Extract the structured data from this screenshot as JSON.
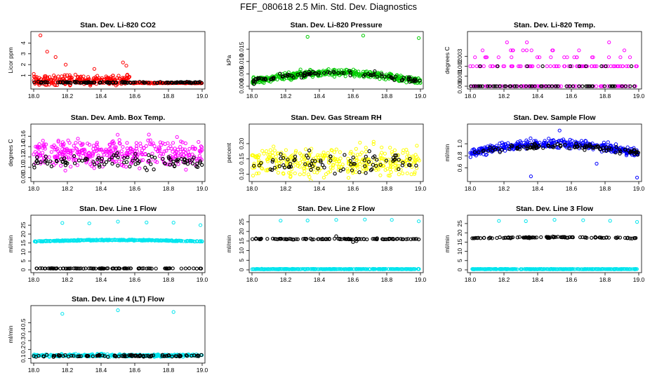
{
  "figure_title": "FEF_080618  2.5 Min. Std. Dev. Diagnostics",
  "colors": {
    "red": "#ff0000",
    "green": "#00cc00",
    "magenta": "#ff00ff",
    "yellow": "#ffff00",
    "blue": "#0000ff",
    "cyan": "#00e5ee",
    "black": "#000000"
  },
  "chart_data": [
    {
      "type": "scatter",
      "title": "Stan. Dev. Li-820 CO2",
      "ylabel": "Licor ppm",
      "xlabel": "",
      "xlim": [
        18.0,
        19.0
      ],
      "ylim": [
        0,
        4.8
      ],
      "x_ticks": [
        "18.0",
        "18.2",
        "18.4",
        "18.6",
        "18.8",
        "19.0"
      ],
      "y_ticks": [
        "1",
        "2",
        "3",
        "4"
      ],
      "primary_color": "red",
      "series": [
        {
          "name": "primary",
          "color": "red",
          "n": 260,
          "base": 0.25,
          "amp": 0.6,
          "noise": 0.25,
          "xmax": 0.57,
          "tail_base": 0.3,
          "tail_noise": 0.04,
          "outliers": [
            [
              18.04,
              4.7
            ],
            [
              18.08,
              3.2
            ],
            [
              18.13,
              2.7
            ],
            [
              18.19,
              2.0
            ],
            [
              18.36,
              1.6
            ],
            [
              18.53,
              2.2
            ],
            [
              18.55,
              1.9
            ]
          ]
        },
        {
          "name": "secondary",
          "color": "black",
          "n": 120,
          "base": 0.35,
          "amp": 0.0,
          "noise": 0.05,
          "xmax": 1.0
        }
      ]
    },
    {
      "type": "scatter",
      "title": "Stan. Dev. Li-820 Pressure",
      "ylabel": "kPa",
      "xlabel": "",
      "xlim": [
        18.0,
        19.0
      ],
      "ylim": [
        0,
        0.021
      ],
      "x_ticks": [
        "18.0",
        "18.2",
        "18.4",
        "18.6",
        "18.8",
        "19.0"
      ],
      "y_ticks": [
        "0.000",
        "0.005",
        "0.010",
        "0.015"
      ],
      "primary_color": "green",
      "series": [
        {
          "name": "primary",
          "color": "green",
          "n": 420,
          "base": 0.002,
          "amp": 0.0035,
          "noise": 0.0012,
          "xmax": 1.0,
          "hump": true,
          "outliers": [
            [
              18.33,
              0.02
            ],
            [
              18.66,
              0.0205
            ],
            [
              18.99,
              0.0195
            ]
          ]
        },
        {
          "name": "secondary",
          "color": "black",
          "n": 90,
          "base": 0.002,
          "amp": 0.0035,
          "noise": 0.0009,
          "xmax": 1.0,
          "hump": true
        }
      ]
    },
    {
      "type": "scatter",
      "title": "Stan. Dev. Li-820 Temp.",
      "ylabel": "degrees C",
      "xlabel": "",
      "xlim": [
        18.0,
        19.0
      ],
      "ylim": [
        0,
        0.0052
      ],
      "x_ticks": [
        "18.0",
        "18.2",
        "18.4",
        "18.6",
        "18.8",
        "19.0"
      ],
      "y_ticks": [
        "0.000",
        "0.001",
        "0.002",
        "0.003"
      ],
      "primary_color": "magenta",
      "quantized": [
        0.0,
        0.002,
        0.0029,
        0.0036,
        0.0044
      ],
      "series": [
        {
          "name": "primary",
          "color": "magenta",
          "n": 200,
          "base": 0.0,
          "amp": 0.0,
          "noise": 0.0,
          "xmax": 1.0
        },
        {
          "name": "secondary",
          "color": "black",
          "n": 70,
          "base": 0.0,
          "amp": 0.0,
          "noise": 0.0,
          "xmax": 1.0
        }
      ]
    },
    {
      "type": "scatter",
      "title": "Stan. Dev. Amb. Box Temp.",
      "ylabel": "degrees C",
      "xlabel": "",
      "xlim": [
        18.0,
        19.0
      ],
      "ylim": [
        0.078,
        0.178
      ],
      "x_ticks": [
        "18.0",
        "18.2",
        "18.4",
        "18.6",
        "18.8",
        "19.0"
      ],
      "y_ticks": [
        "0.08",
        "0.10",
        "0.12",
        "0.14",
        "0.16"
      ],
      "primary_color": "magenta",
      "series": [
        {
          "name": "primary",
          "color": "magenta",
          "n": 380,
          "base": 0.127,
          "amp": 0.0,
          "noise": 0.022,
          "xmax": 1.0
        },
        {
          "name": "secondary",
          "color": "black",
          "n": 100,
          "base": 0.112,
          "amp": 0.0,
          "noise": 0.012,
          "xmax": 1.0
        }
      ]
    },
    {
      "type": "scatter",
      "title": "Stan. Dev. Gas Stream RH",
      "ylabel": "percent",
      "xlabel": "",
      "xlim": [
        18.0,
        19.0
      ],
      "ylim": [
        0.085,
        0.255
      ],
      "x_ticks": [
        "18.0",
        "18.2",
        "18.4",
        "18.6",
        "18.8",
        "19.0"
      ],
      "y_ticks": [
        "0.10",
        "0.15",
        "0.20"
      ],
      "primary_color": "yellow",
      "series": [
        {
          "name": "primary",
          "color": "yellow",
          "n": 360,
          "base": 0.14,
          "amp": 0.0,
          "noise": 0.04,
          "xmax": 1.0
        },
        {
          "name": "secondary",
          "color": "black",
          "n": 80,
          "base": 0.14,
          "amp": 0.0,
          "noise": 0.03,
          "xmax": 1.0
        }
      ]
    },
    {
      "type": "scatter",
      "title": "Stan. Dev. Sample Flow",
      "ylabel": "ml/min",
      "xlabel": "",
      "xlim": [
        18.0,
        19.0
      ],
      "ylim": [
        0.42,
        1.28
      ],
      "x_ticks": [
        "18.0",
        "18.2",
        "18.4",
        "18.6",
        "18.8",
        "19.0"
      ],
      "y_ticks": [
        "0.6",
        "0.8",
        "1.0"
      ],
      "primary_color": "blue",
      "series": [
        {
          "name": "primary",
          "color": "blue",
          "n": 420,
          "base": 0.85,
          "amp": 0.15,
          "noise": 0.06,
          "xmax": 1.0,
          "hump": true,
          "outliers": [
            [
              18.53,
              1.22
            ],
            [
              18.36,
              0.46
            ],
            [
              18.99,
              0.44
            ],
            [
              18.75,
              0.67
            ]
          ]
        },
        {
          "name": "secondary",
          "color": "black",
          "n": 100,
          "base": 0.85,
          "amp": 0.12,
          "noise": 0.04,
          "xmax": 1.0,
          "hump": true
        }
      ]
    },
    {
      "type": "scatter",
      "title": "Stan. Dev. Line 1 Flow",
      "ylabel": "ml/min",
      "xlabel": "",
      "xlim": [
        18.0,
        19.0
      ],
      "ylim": [
        0,
        29
      ],
      "x_ticks": [
        "18.0",
        "18.2",
        "18.4",
        "18.6",
        "18.8",
        "19.0"
      ],
      "y_ticks": [
        "0",
        "5",
        "10",
        "15",
        "20",
        "25"
      ],
      "primary_color": "cyan",
      "series": [
        {
          "name": "primary",
          "color": "cyan",
          "n": 320,
          "base": 15.9,
          "amp": 0.8,
          "noise": 0.25,
          "xmax": 1.0,
          "hump": true,
          "outliers": [
            [
              18.17,
              26.2
            ],
            [
              18.33,
              26.0
            ],
            [
              18.5,
              27.0
            ],
            [
              18.67,
              26.5
            ],
            [
              18.83,
              26.4
            ],
            [
              18.99,
              25.0
            ]
          ]
        },
        {
          "name": "secondary",
          "color": "black",
          "n": 100,
          "base": 0.8,
          "amp": 0.0,
          "noise": 0.1,
          "xmax": 1.0
        }
      ]
    },
    {
      "type": "scatter",
      "title": "Stan. Dev. Line 2 Flow",
      "ylabel": "ml/min",
      "xlabel": "",
      "xlim": [
        18.0,
        19.0
      ],
      "ylim": [
        0,
        27
      ],
      "x_ticks": [
        "18.0",
        "18.2",
        "18.4",
        "18.6",
        "18.8",
        "19.0"
      ],
      "y_ticks": [
        "0",
        "5",
        "10",
        "15",
        "20",
        "25"
      ],
      "primary_color": "cyan",
      "series": [
        {
          "name": "primary",
          "color": "cyan",
          "n": 320,
          "base": 0.4,
          "amp": 0.0,
          "noise": 0.1,
          "xmax": 1.0,
          "outliers": [
            [
              18.17,
              25.6
            ],
            [
              18.33,
              25.7
            ],
            [
              18.5,
              26.0
            ],
            [
              18.67,
              26.2
            ],
            [
              18.83,
              26.0
            ],
            [
              18.99,
              25.3
            ]
          ]
        },
        {
          "name": "secondary",
          "color": "black",
          "n": 100,
          "base": 16.0,
          "amp": 0.0,
          "noise": 0.25,
          "xmax": 1.0,
          "dips": [
            [
              18.5,
              17.5
            ],
            [
              18.6,
              14.5
            ],
            [
              18.62,
              15.0
            ]
          ]
        }
      ]
    },
    {
      "type": "scatter",
      "title": "Stan. Dev. Line 3 Flow",
      "ylabel": "ml/min",
      "xlabel": "",
      "xlim": [
        18.0,
        19.0
      ],
      "ylim": [
        0,
        28
      ],
      "x_ticks": [
        "18.0",
        "18.2",
        "18.4",
        "18.6",
        "18.8",
        "19.0"
      ],
      "y_ticks": [
        "0",
        "5",
        "10",
        "15",
        "20",
        "25"
      ],
      "primary_color": "cyan",
      "series": [
        {
          "name": "primary",
          "color": "cyan",
          "n": 320,
          "base": 0.4,
          "amp": 0.0,
          "noise": 0.1,
          "xmax": 1.0,
          "outliers": [
            [
              18.17,
              26.4
            ],
            [
              18.33,
              26.3
            ],
            [
              18.5,
              27.0
            ],
            [
              18.67,
              26.8
            ],
            [
              18.83,
              26.5
            ],
            [
              18.99,
              25.9
            ]
          ]
        },
        {
          "name": "secondary",
          "color": "black",
          "n": 100,
          "base": 17.0,
          "amp": 0.6,
          "noise": 0.3,
          "xmax": 1.0,
          "hump": true
        }
      ]
    },
    {
      "type": "scatter",
      "title": "Stan. Dev. Line 4 (LT) Flow",
      "ylabel": "ml/min",
      "xlabel": "",
      "xlim": [
        18.0,
        19.0
      ],
      "ylim": [
        0.08,
        0.66
      ],
      "x_ticks": [
        "18.0",
        "18.2",
        "18.4",
        "18.6",
        "18.8",
        "19.0"
      ],
      "y_ticks": [
        "0.1",
        "0.2",
        "0.3",
        "0.4",
        "0.5"
      ],
      "primary_color": "cyan",
      "series": [
        {
          "name": "primary",
          "color": "cyan",
          "n": 320,
          "base": 0.135,
          "amp": 0.0,
          "noise": 0.012,
          "xmax": 1.0,
          "outliers": [
            [
              18.17,
              0.6
            ],
            [
              18.5,
              0.64
            ],
            [
              18.83,
              0.62
            ]
          ]
        },
        {
          "name": "secondary",
          "color": "black",
          "n": 100,
          "base": 0.13,
          "amp": 0.0,
          "noise": 0.01,
          "xmax": 1.0
        }
      ]
    }
  ]
}
